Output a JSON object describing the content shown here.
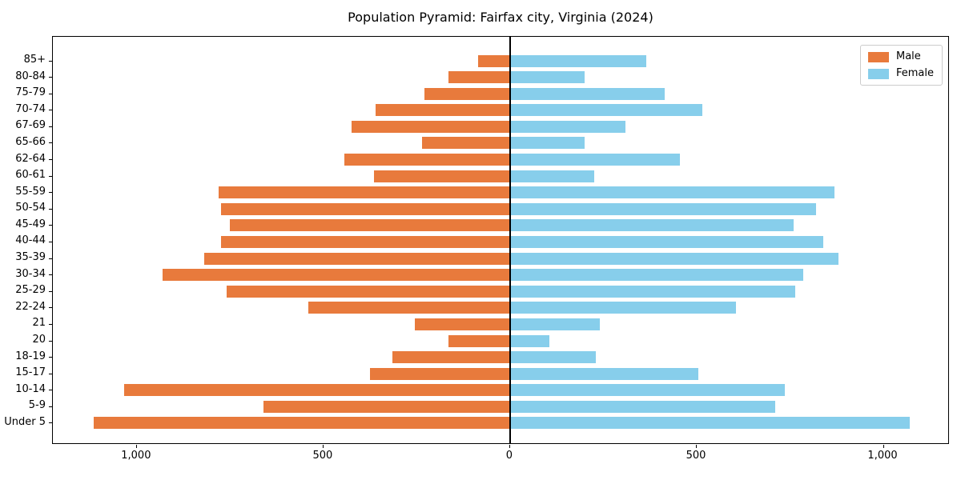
{
  "chart_data": {
    "type": "bar",
    "subtype": "population-pyramid",
    "title": "Population Pyramid: Fairfax city, Virginia (2024)",
    "categories": [
      "85+",
      "80-84",
      "75-79",
      "70-74",
      "67-69",
      "65-66",
      "62-64",
      "60-61",
      "55-59",
      "50-54",
      "45-49",
      "40-44",
      "35-39",
      "30-34",
      "25-29",
      "22-24",
      "21",
      "20",
      "18-19",
      "15-17",
      "10-14",
      "5-9",
      "Under 5"
    ],
    "series": [
      {
        "name": "Male",
        "side": "left",
        "color": "#e87a3c",
        "values": [
          85,
          165,
          230,
          360,
          425,
          235,
          445,
          365,
          780,
          775,
          750,
          775,
          820,
          930,
          760,
          540,
          255,
          165,
          315,
          375,
          1035,
          660,
          1115
        ]
      },
      {
        "name": "Female",
        "side": "right",
        "color": "#87ceeb",
        "values": [
          365,
          200,
          415,
          515,
          310,
          200,
          455,
          225,
          870,
          820,
          760,
          840,
          880,
          785,
          765,
          605,
          240,
          105,
          230,
          505,
          735,
          710,
          1070
        ]
      }
    ],
    "xlabel": "",
    "ylabel": "",
    "x_tick_labels": [
      "1,000",
      "500",
      "0",
      "500",
      "1,000"
    ],
    "x_tick_values": [
      -1000,
      -500,
      0,
      500,
      1000
    ],
    "xlim": [
      -1225,
      1178
    ],
    "grid": false,
    "zero_line": true,
    "legend_position": "upper right",
    "axis_color": "#000000",
    "background_color": "#ffffff"
  }
}
